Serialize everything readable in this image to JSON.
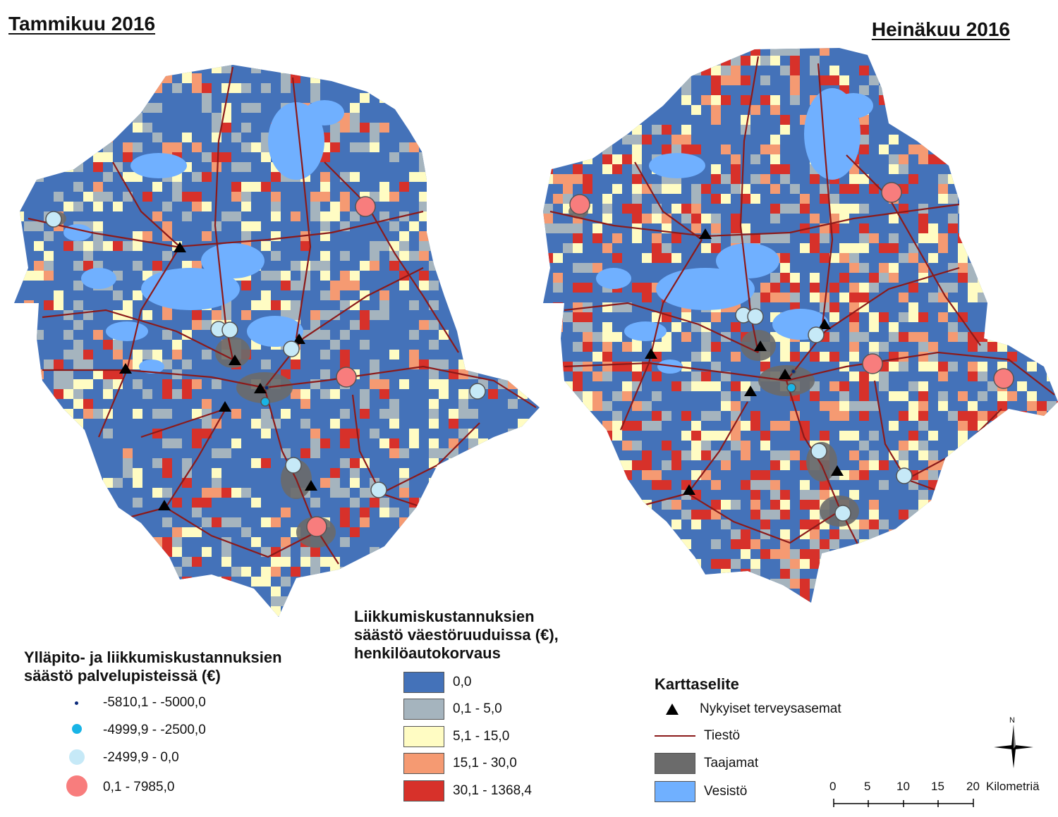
{
  "maps": {
    "left_title": "Tammikuu 2016",
    "right_title": "Heinäkuu 2016"
  },
  "point_legend": {
    "heading_lines": [
      "Ylläpito- ja liikkumiskustannuksien",
      "säästö palvelupisteissä (€)"
    ],
    "items": [
      {
        "label": "-5810,1 - -5000,0",
        "color": "#0b2a7a"
      },
      {
        "label": "-4999,9 - -2500,0",
        "color": "#18b4e6"
      },
      {
        "label": "-2499,9 - 0,0",
        "color": "#c6e9f7"
      },
      {
        "label": "0,1 - 7985,0",
        "color": "#f87d7d"
      }
    ]
  },
  "grid_legend": {
    "heading_lines": [
      "Liikkumiskustannuksien",
      "säästö väestöruuduissa (€),",
      "henkilöautokorvaus"
    ],
    "items": [
      {
        "label": "0,0",
        "color": "#4472b9"
      },
      {
        "label": "0,1 - 5,0",
        "color": "#a5b4be"
      },
      {
        "label": "5,1 - 15,0",
        "color": "#fffcc3"
      },
      {
        "label": "15,1 - 30,0",
        "color": "#f59a72"
      },
      {
        "label": "30,1 - 1368,4",
        "color": "#d7312a"
      }
    ]
  },
  "map_legend": {
    "heading": "Karttaselite",
    "items": [
      {
        "label": "Nykyiset terveysasemat",
        "symbol": "triangle-icon",
        "color": "#000000"
      },
      {
        "label": "Tiestö",
        "symbol": "line",
        "color": "#8b1a1a"
      },
      {
        "label": "Taajamat",
        "symbol": "box",
        "color": "#6b6b6b"
      },
      {
        "label": "Vesistö",
        "symbol": "box",
        "color": "#70b0ff"
      }
    ]
  },
  "scale_bar": {
    "ticks": [
      "0",
      "5",
      "10",
      "15",
      "20"
    ],
    "unit": "Kilometriä"
  },
  "north_arrow": {
    "label": "N",
    "icon": "compass-rose-icon"
  },
  "colors": {
    "land": "#4472b9",
    "water": "#70b0ff",
    "road": "#8b1a1a",
    "urban": "#6b6b6b"
  }
}
